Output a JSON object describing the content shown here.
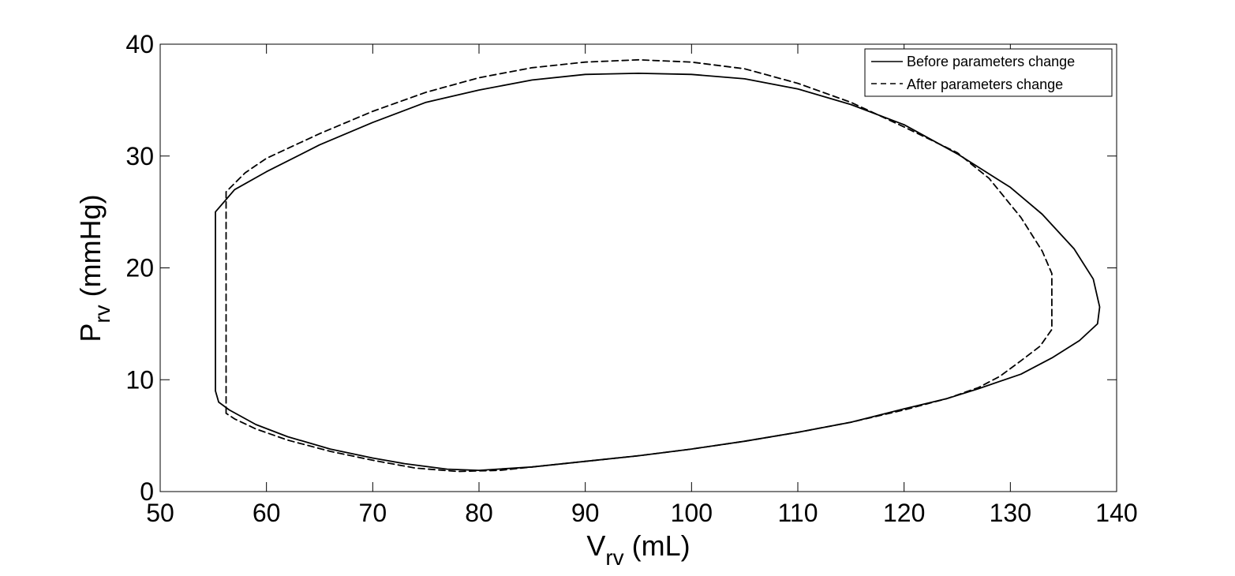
{
  "chart_data": {
    "type": "line",
    "xlabel": {
      "main": "V",
      "sub": "rv",
      "unit": " (mL)"
    },
    "ylabel": {
      "main": "P",
      "sub": "rv",
      "unit": " (mmHg)"
    },
    "xlim": [
      50,
      140
    ],
    "ylim": [
      0,
      40
    ],
    "xticks": [
      50,
      60,
      70,
      80,
      90,
      100,
      110,
      120,
      130,
      140
    ],
    "yticks": [
      0,
      10,
      20,
      30,
      40
    ],
    "grid": false,
    "legend_position": "top-right",
    "series": [
      {
        "name": "Before parameters change",
        "style": "solid",
        "color": "#000000",
        "points": [
          [
            55.2,
            9
          ],
          [
            55.2,
            25
          ],
          [
            57,
            27
          ],
          [
            60,
            28.6
          ],
          [
            65,
            31
          ],
          [
            70,
            33
          ],
          [
            75,
            34.8
          ],
          [
            80,
            35.9
          ],
          [
            85,
            36.8
          ],
          [
            90,
            37.3
          ],
          [
            95,
            37.4
          ],
          [
            100,
            37.3
          ],
          [
            105,
            36.9
          ],
          [
            110,
            36
          ],
          [
            115,
            34.6
          ],
          [
            120,
            32.8
          ],
          [
            125,
            30.2
          ],
          [
            130,
            27.2
          ],
          [
            133,
            24.8
          ],
          [
            136,
            21.7
          ],
          [
            137.8,
            19
          ],
          [
            138.4,
            16.5
          ],
          [
            138.2,
            15
          ],
          [
            136.5,
            13.5
          ],
          [
            134,
            12
          ],
          [
            131,
            10.5
          ],
          [
            127,
            9.2
          ],
          [
            124,
            8.3
          ],
          [
            120,
            7.4
          ],
          [
            115,
            6.2
          ],
          [
            110,
            5.3
          ],
          [
            105,
            4.5
          ],
          [
            100,
            3.8
          ],
          [
            95,
            3.2
          ],
          [
            90,
            2.7
          ],
          [
            85,
            2.2
          ],
          [
            80,
            1.9
          ],
          [
            77,
            2
          ],
          [
            73,
            2.5
          ],
          [
            70,
            3
          ],
          [
            66,
            3.8
          ],
          [
            62,
            4.9
          ],
          [
            59,
            6
          ],
          [
            56.5,
            7.3
          ],
          [
            55.5,
            8
          ],
          [
            55.2,
            9
          ]
        ]
      },
      {
        "name": "After parameters change",
        "style": "dashed",
        "color": "#000000",
        "points": [
          [
            56.2,
            7
          ],
          [
            56.2,
            26.8
          ],
          [
            58,
            28.5
          ],
          [
            60,
            29.8
          ],
          [
            65,
            32
          ],
          [
            70,
            34
          ],
          [
            75,
            35.7
          ],
          [
            80,
            37
          ],
          [
            85,
            37.9
          ],
          [
            90,
            38.4
          ],
          [
            95,
            38.6
          ],
          [
            100,
            38.4
          ],
          [
            105,
            37.8
          ],
          [
            110,
            36.5
          ],
          [
            115,
            34.8
          ],
          [
            120,
            32.6
          ],
          [
            125,
            30.3
          ],
          [
            128,
            28
          ],
          [
            131,
            24.5
          ],
          [
            133,
            21.5
          ],
          [
            133.9,
            19.5
          ],
          [
            133.9,
            14.5
          ],
          [
            132.8,
            13
          ],
          [
            131,
            11.7
          ],
          [
            129,
            10.3
          ],
          [
            127,
            9.3
          ],
          [
            124,
            8.3
          ],
          [
            120,
            7.3
          ],
          [
            115,
            6.2
          ],
          [
            110,
            5.3
          ],
          [
            105,
            4.5
          ],
          [
            100,
            3.8
          ],
          [
            95,
            3.2
          ],
          [
            90,
            2.7
          ],
          [
            85,
            2.2
          ],
          [
            82,
            1.9
          ],
          [
            78,
            1.8
          ],
          [
            74,
            2.1
          ],
          [
            70,
            2.8
          ],
          [
            66,
            3.6
          ],
          [
            62,
            4.6
          ],
          [
            59,
            5.6
          ],
          [
            57,
            6.5
          ],
          [
            56.2,
            7
          ]
        ]
      }
    ]
  }
}
